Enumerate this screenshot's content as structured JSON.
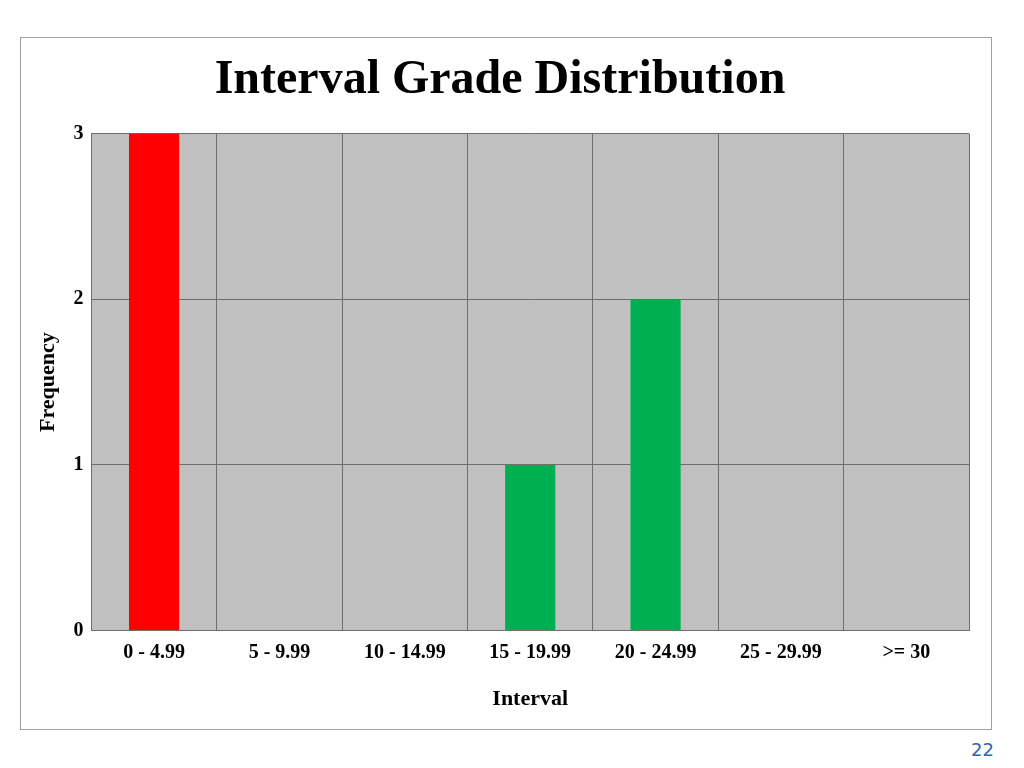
{
  "chart_data": {
    "type": "bar",
    "title": "Interval Grade Distribution",
    "x_label": "Interval",
    "y_label": "Frequency",
    "categories": [
      "0 - 4.99",
      "5 - 9.99",
      "10 - 14.99",
      "15 - 19.99",
      "20 - 24.99",
      "25 - 29.99",
      ">= 30"
    ],
    "values": [
      3,
      0,
      0,
      1,
      2,
      0,
      0
    ],
    "colors": [
      "#ff0000",
      "#00b050",
      "#00b050",
      "#00b050",
      "#00b050",
      "#00b050",
      "#00b050"
    ],
    "ylim": [
      0,
      3
    ],
    "yticks": [
      0,
      1,
      2,
      3
    ],
    "grid": true
  },
  "slide_number": "22"
}
